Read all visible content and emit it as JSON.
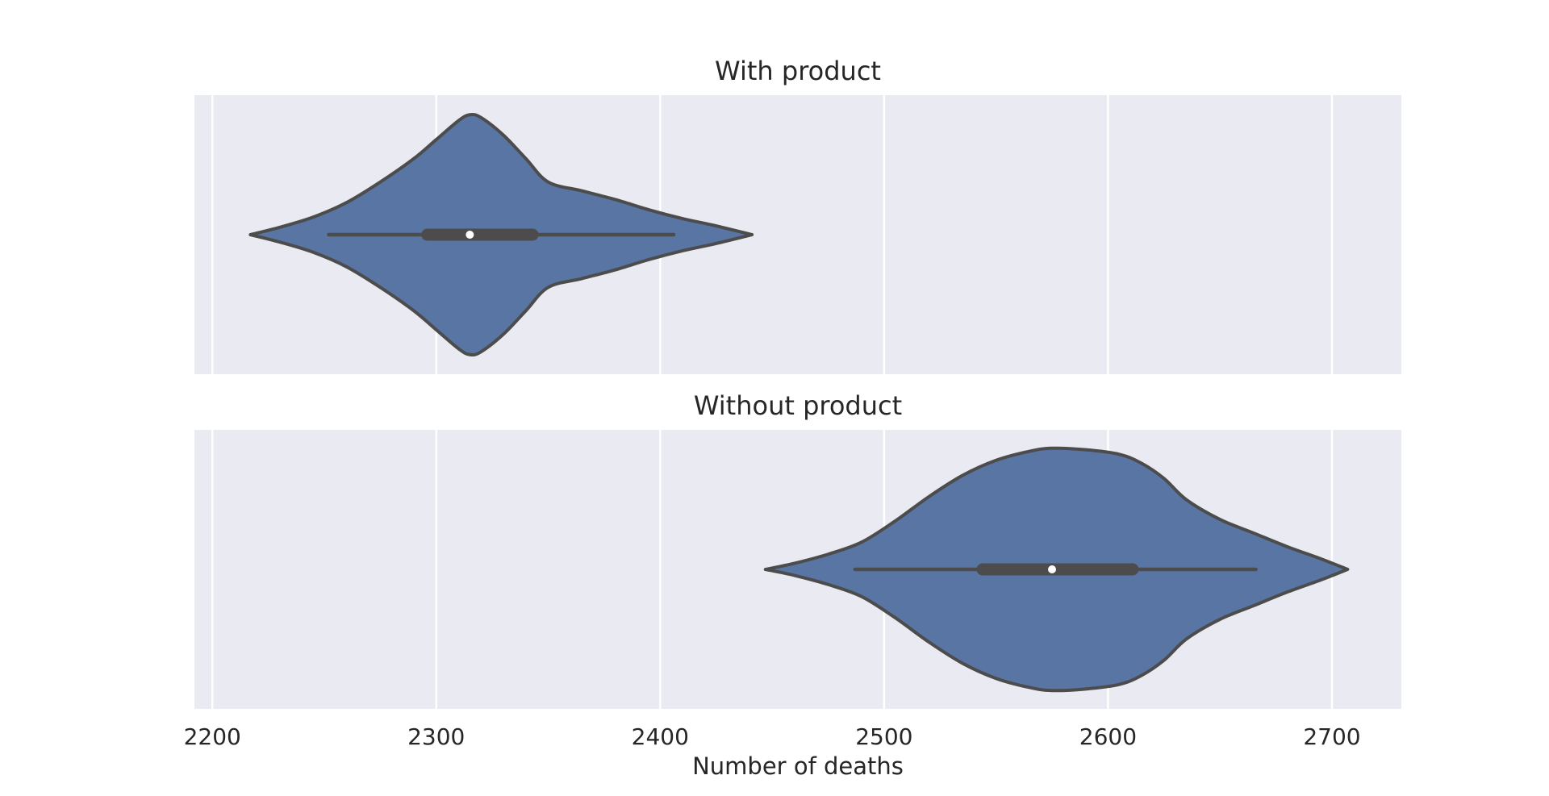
{
  "chart_data": [
    {
      "type": "violin",
      "title": "With product",
      "xlabel": "",
      "ylabel": "",
      "xlim": [
        2192,
        2731
      ],
      "grid": true,
      "color": "#5975a4",
      "edge_color": "#4c4c4c",
      "background": "#eaeaf2",
      "min": 2217,
      "max": 2441,
      "whisker_low": 2252,
      "q1": 2296,
      "median": 2315,
      "q3": 2343,
      "whisker_high": 2406,
      "density": [
        [
          2217,
          0.0
        ],
        [
          2230,
          0.05
        ],
        [
          2245,
          0.12
        ],
        [
          2260,
          0.22
        ],
        [
          2275,
          0.36
        ],
        [
          2290,
          0.52
        ],
        [
          2300,
          0.65
        ],
        [
          2310,
          0.78
        ],
        [
          2315,
          0.82
        ],
        [
          2320,
          0.8
        ],
        [
          2330,
          0.68
        ],
        [
          2340,
          0.52
        ],
        [
          2350,
          0.36
        ],
        [
          2365,
          0.3
        ],
        [
          2380,
          0.24
        ],
        [
          2395,
          0.17
        ],
        [
          2410,
          0.11
        ],
        [
          2425,
          0.06
        ],
        [
          2441,
          0.0
        ]
      ]
    },
    {
      "type": "violin",
      "title": "Without product",
      "xlabel": "Number of deaths",
      "ylabel": "",
      "xlim": [
        2192,
        2731
      ],
      "xticks": [
        2200,
        2300,
        2400,
        2500,
        2600,
        2700
      ],
      "grid": true,
      "color": "#5975a4",
      "edge_color": "#4c4c4c",
      "background": "#eaeaf2",
      "min": 2447,
      "max": 2707,
      "whisker_low": 2487,
      "q1": 2544,
      "median": 2575,
      "q3": 2611,
      "whisker_high": 2666,
      "density": [
        [
          2447,
          0.0
        ],
        [
          2460,
          0.04
        ],
        [
          2475,
          0.1
        ],
        [
          2490,
          0.18
        ],
        [
          2505,
          0.32
        ],
        [
          2520,
          0.48
        ],
        [
          2535,
          0.62
        ],
        [
          2550,
          0.72
        ],
        [
          2565,
          0.78
        ],
        [
          2575,
          0.8
        ],
        [
          2590,
          0.79
        ],
        [
          2605,
          0.76
        ],
        [
          2615,
          0.7
        ],
        [
          2625,
          0.6
        ],
        [
          2635,
          0.46
        ],
        [
          2650,
          0.33
        ],
        [
          2665,
          0.24
        ],
        [
          2680,
          0.15
        ],
        [
          2695,
          0.07
        ],
        [
          2707,
          0.0
        ]
      ]
    }
  ]
}
